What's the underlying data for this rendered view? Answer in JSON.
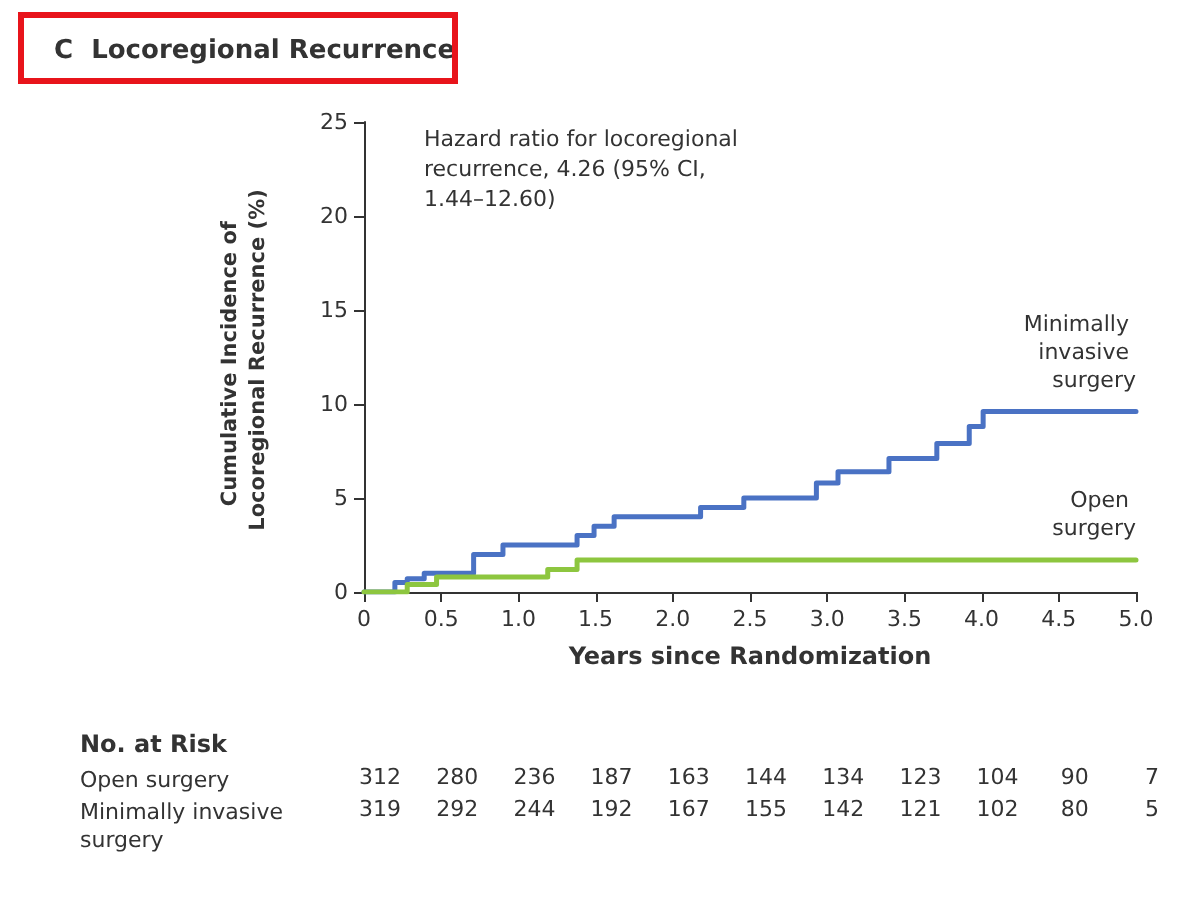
{
  "chart_data": {
    "type": "step",
    "title": "C  Locoregional Recurrence",
    "xlabel": "Years since Randomization",
    "ylabel": "Cumulative Incidence of Locoregional Recurrence (%)",
    "annotations": [
      "Hazard ratio for locoregional recurrence, 4.26 (95% CI, 1.44–12.60)",
      "No. at Risk",
      "Open surgery\t312\t280\t236\t187\t163\t144\t134\t123\t104\t90\t7",
      "Minimally invasive surgery\t319\t292\t244\t192\t167\t155\t142\t121\t102\t80\t5"
    ],
    "series": [
      {
        "name": "Minimally invasive surgery",
        "color": "#4a72c4",
        "x": [
          0,
          0.2,
          0.28,
          0.39,
          0.71,
          0.9,
          1.38,
          1.49,
          1.62,
          2.18,
          2.46,
          2.93,
          3.07,
          3.4,
          3.71,
          3.92,
          4.01,
          5.0
        ],
        "values": [
          0,
          0.5,
          0.7,
          1.0,
          2.0,
          2.5,
          3.0,
          3.5,
          4.0,
          4.5,
          5.0,
          5.8,
          6.4,
          7.1,
          7.9,
          8.8,
          9.6,
          9.6
        ]
      },
      {
        "name": "Open surgery",
        "color": "#8dc63f",
        "x": [
          0,
          0.28,
          0.47,
          1.19,
          1.38,
          5.0
        ],
        "values": [
          0,
          0.4,
          0.8,
          1.2,
          1.7,
          1.7
        ]
      }
    ],
    "xlim": [
      0,
      5
    ],
    "xticks": [
      0,
      0.5,
      {
        "value": 1,
        "label": "1.0"
      },
      1.5,
      {
        "value": 2,
        "label": "2.0"
      },
      2.5,
      {
        "value": 3,
        "label": "3.0"
      },
      3.5,
      {
        "value": 4,
        "label": "4.0"
      },
      4.5,
      {
        "value": 5,
        "label": "5.0"
      }
    ],
    "ylim": [
      0,
      25
    ],
    "yticks": [
      0,
      5,
      10,
      15,
      20,
      25
    ],
    "grid": false,
    "legend": false,
    "marker": "none",
    "line_style": "solid"
  }
}
